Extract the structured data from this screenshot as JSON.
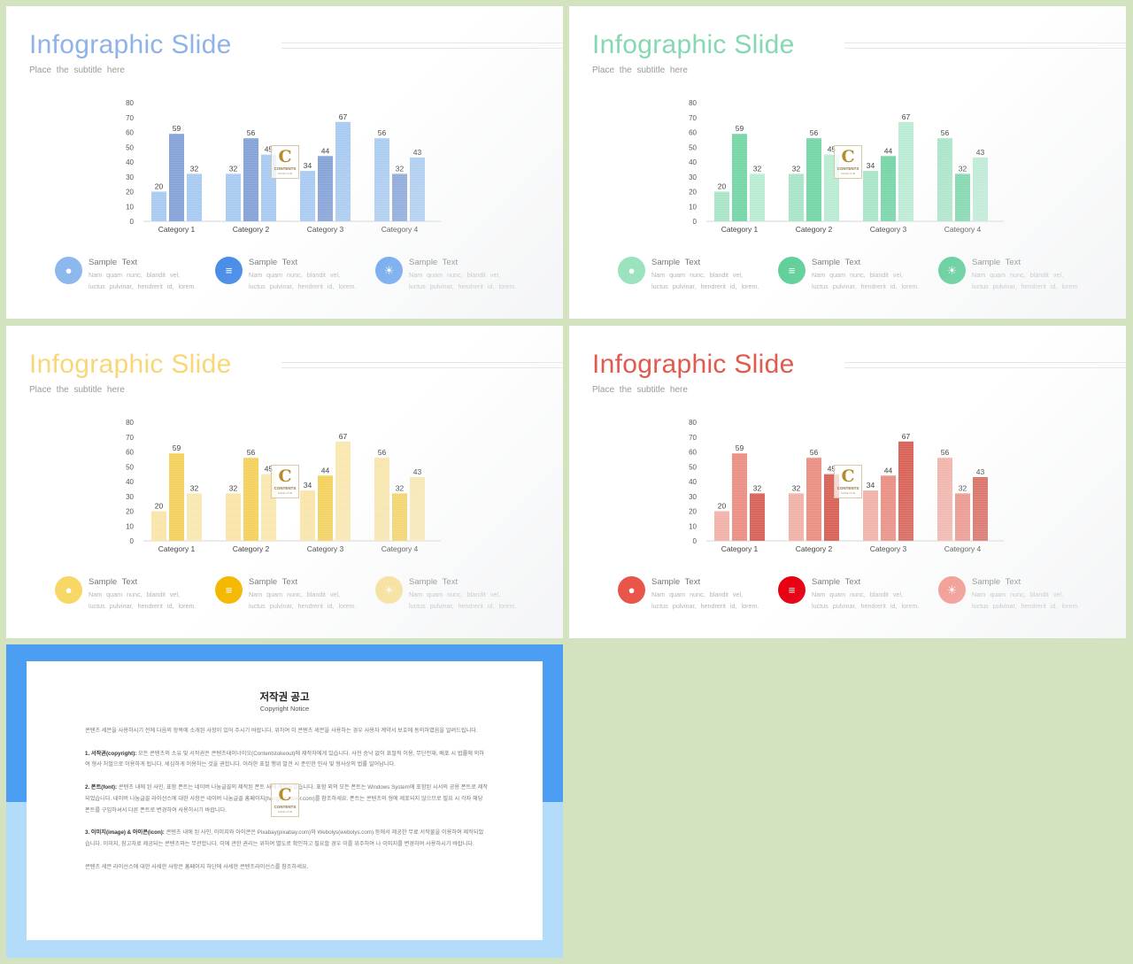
{
  "slides": [
    {
      "title": "Infographic Slide",
      "subtitle": "Place the subtitle here",
      "title_color": "#8fb3e6",
      "bar_colors": [
        "#a4c8f0",
        "#7f9ed6",
        "#a4c8f0"
      ],
      "icon_colors": [
        "#8db8ee",
        "#4a8ee8",
        "#5b9cf0"
      ]
    },
    {
      "title": "Infographic Slide",
      "subtitle": "Place the subtitle here",
      "title_color": "#86d8b0",
      "bar_colors": [
        "#a4e3c5",
        "#6fd3a3",
        "#b6ead1"
      ],
      "icon_colors": [
        "#9be3bf",
        "#62d09b",
        "#48c98b"
      ]
    },
    {
      "title": "Infographic Slide",
      "subtitle": "Place the subtitle here",
      "title_color": "#f7d777",
      "bar_colors": [
        "#f9e4a6",
        "#f3cf55",
        "#f9e6ac"
      ],
      "icon_colors": [
        "#f7d766",
        "#f5b800",
        "#f9df8a"
      ]
    },
    {
      "title": "Infographic Slide",
      "subtitle": "Place the subtitle here",
      "title_color": "#e05a4e",
      "bar_colors": [
        "#f0aea5",
        "#e98a7e",
        "#d65a4f"
      ],
      "icon_colors": [
        "#e9554b",
        "#e60012",
        "#f38a7e"
      ]
    }
  ],
  "legend": [
    {
      "title": "Sample Text",
      "line1": "Nam quam nunc, blandit vel,",
      "line2": "luctus pulvinar, hendrerit id, lorem.",
      "icon": "money-bag-icon"
    },
    {
      "title": "Sample Text",
      "line1": "Nam quam nunc, blandit vel,",
      "line2": "luctus pulvinar, hendrerit id, lorem.",
      "icon": "coins-stack-icon"
    },
    {
      "title": "Sample Text",
      "line1": "Nam quam nunc, blandit vel,",
      "line2": "luctus pulvinar, hendrerit id, lorem.",
      "icon": "lightbulb-icon"
    }
  ],
  "chart_data": {
    "type": "bar",
    "categories": [
      "Category 1",
      "Category 2",
      "Category 3",
      "Category 4"
    ],
    "series": [
      {
        "values": [
          20,
          32,
          34,
          56
        ]
      },
      {
        "values": [
          59,
          56,
          44,
          32
        ]
      },
      {
        "values": [
          32,
          45,
          67,
          43
        ]
      }
    ],
    "ylim": [
      0,
      80
    ],
    "yticks": [
      0,
      10,
      20,
      30,
      40,
      50,
      60,
      70,
      80
    ],
    "title": "",
    "xlabel": "",
    "ylabel": "",
    "grid": false,
    "legend": "none"
  },
  "watermark": {
    "letter": "C",
    "line1": "CONTENTS",
    "line2": "SLIDE.COM"
  },
  "notice": {
    "title": "저작권 공고",
    "subtitle": "Copyright Notice",
    "p0": "콘텐츠 세븐을 사용하시기 전에 다음의 항목에 소개된 사항이 있어 주시기 바랍니다. 위하여 이 콘텐츠 세븐을 사용하는 경우 사용자 계약서 보호에 동의하였음을 알려드립니다.",
    "p1_head": "1. 서작권(copyright):",
    "p1": " 모든 콘텐츠의 소유 및 서작권은 콘텐츠테이너이오(Contentstokeout)에 제작자에게 있습니다. 사전 승낙 없이 표절적 이용, 무단전재, 배포 시 법률에 의하여 형사 처벌으로 이용하게 됩니다. 세심하게 이용하는 것을 권합니다. 이러한 표절 행위 발견 시 준인한 민사 및 형사상의 법률 일어납니다.",
    "p2_head": "2. 폰트(font):",
    "p2": " 콘텐츠 내에 된 사인, 표함 폰트는 네이버 나눔글꼴의 제작된 폰트 사에 제작되었습니다. 표함 외의 모든 폰트는 Windows System에 포함된 시서의 공용 폰트로 제작되었습니다. 네이버 나눔글꼴 라이선스에 대한 사항은 네이버 나눔글꼴 홈페이지(hangeul.naver.com)를 참조하세요. 폰트는 콘텐츠의 형에 제포되지 않으므로 필요 시 각자 해당 폰트를 구입하셔서 다른 폰트로 변경하여 사용하시기 바랍니다.",
    "p3_head": "3. 이미지(image) & 아이콘(icon):",
    "p3": " 콘텐츠 내에 된 사인, 이미지와 아이콘은 Pixabay(pixabay.com)와 Webolys(webolys.com) 등에서 제공한 무료 서작물을 이용하여 제작되었습니다. 이미지, 참고자료 제공되는 콘텐츠와는 무관합니다. 이에 관한 권리는 위하여 별도로 확인하고 필요할 경우 이를 위주하여 나 이미지를 변경하여 사용하시기 바랍니다.",
    "p4": "콘텐츠 세븐 라이선스에 대한 사세한 사항은 홈페이지 하단에 사세한 콘텐츠라이선스를 참조하세요."
  }
}
